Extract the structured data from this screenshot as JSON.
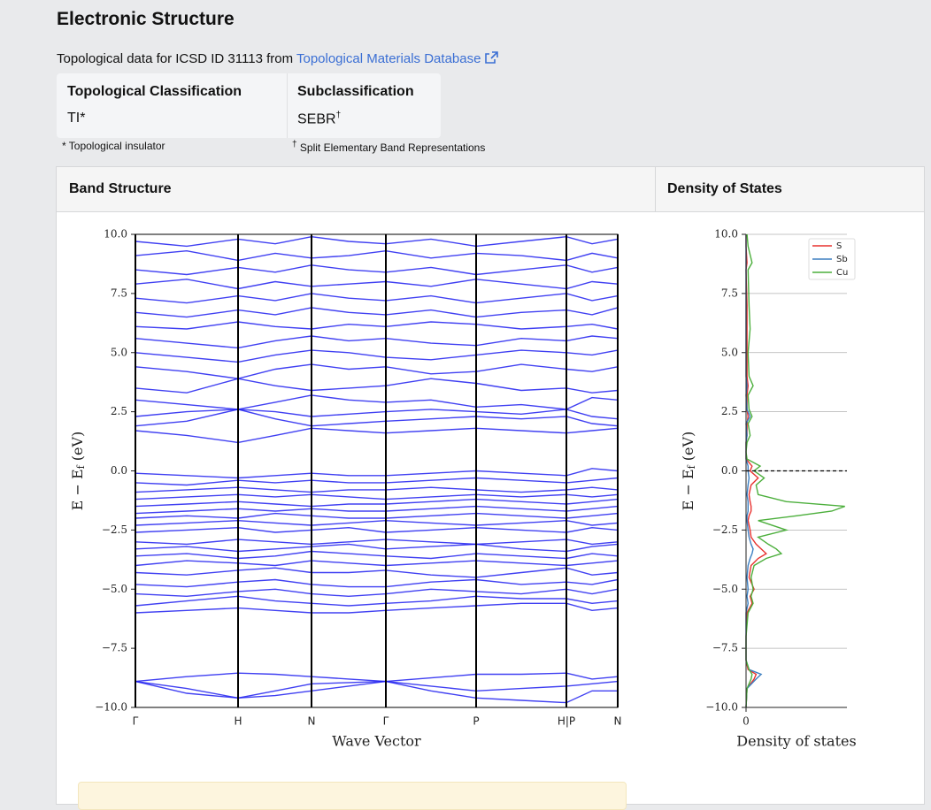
{
  "header": {
    "title": "Electronic Structure"
  },
  "source": {
    "text": "Topological data for ICSD ID 31113 from ",
    "link": "Topological Materials Database"
  },
  "classification": {
    "headers": [
      "Topological Classification",
      "Subclassification"
    ],
    "values": [
      {
        "text": "TI",
        "mark": "*"
      },
      {
        "text": "SEBR",
        "mark": "†"
      }
    ],
    "footnotes": [
      {
        "mark": "*",
        "text": " Topological insulator"
      },
      {
        "mark": "†",
        "text": " Split Elementary Band Representations"
      }
    ]
  },
  "panels": [
    "Band Structure",
    "Density of States"
  ],
  "chart_data": [
    {
      "type": "line",
      "xlabel": "Wave Vector",
      "ylabel": {
        "main": "E − E",
        "sub": "f",
        "unit": " (eV)"
      },
      "color": "#1f1ff0",
      "xlim": [
        0,
        5.45
      ],
      "ylim": [
        -10,
        10
      ],
      "xticks": [
        {
          "value": 0,
          "label": "Γ"
        },
        {
          "value": 1.16,
          "label": "H"
        },
        {
          "value": 1.99,
          "label": "N"
        },
        {
          "value": 2.83,
          "label": "Γ"
        },
        {
          "value": 3.85,
          "label": "P"
        },
        {
          "value": 4.87,
          "label": "H|P"
        },
        {
          "value": 5.45,
          "label": "N"
        }
      ],
      "yticks": [
        {
          "value": 10,
          "label": "10.0"
        },
        {
          "value": 7.5,
          "label": "7.5"
        },
        {
          "value": 5,
          "label": "5.0"
        },
        {
          "value": 2.5,
          "label": "2.5"
        },
        {
          "value": 0,
          "label": "0.0"
        },
        {
          "value": -2.5,
          "label": "−2.5"
        },
        {
          "value": -5,
          "label": "−5.0"
        },
        {
          "value": -7.5,
          "label": "−7.5"
        },
        {
          "value": -10,
          "label": "−10.0"
        }
      ],
      "x": [
        0,
        0.58,
        1.16,
        1.58,
        1.99,
        2.41,
        2.83,
        3.34,
        3.85,
        4.36,
        4.87,
        5.16,
        5.45
      ],
      "series": [
        {
          "values": [
            -8.9,
            -8.7,
            -8.55,
            -8.6,
            -8.7,
            -8.8,
            -8.9,
            -8.75,
            -8.6,
            -8.6,
            -8.55,
            -8.8,
            -8.7
          ]
        },
        {
          "values": [
            -8.9,
            -9.2,
            -9.6,
            -9.3,
            -9.0,
            -8.95,
            -8.9,
            -9.1,
            -9.3,
            -9.2,
            -9.1,
            -9.0,
            -8.9
          ]
        },
        {
          "values": [
            -8.9,
            -9.4,
            -9.6,
            -9.5,
            -9.3,
            -9.1,
            -8.9,
            -9.3,
            -9.6,
            -9.7,
            -9.8,
            -9.3,
            -9.3
          ]
        },
        {
          "values": [
            -6,
            -5.9,
            -5.8,
            -5.9,
            -6,
            -6,
            -5.9,
            -5.8,
            -5.7,
            -5.6,
            -5.6,
            -5.9,
            -5.8
          ]
        },
        {
          "values": [
            -5.7,
            -5.5,
            -5.3,
            -5.5,
            -5.6,
            -5.7,
            -5.6,
            -5.5,
            -5.3,
            -5.4,
            -5.4,
            -5.6,
            -5.5
          ]
        },
        {
          "values": [
            -5.2,
            -5.3,
            -5.1,
            -5.0,
            -5.2,
            -5.3,
            -5.2,
            -5.0,
            -5.1,
            -5.2,
            -5.0,
            -5.2,
            -5.0
          ]
        },
        {
          "values": [
            -4.8,
            -4.9,
            -4.7,
            -4.6,
            -4.8,
            -4.9,
            -4.9,
            -4.7,
            -4.6,
            -4.8,
            -4.7,
            -4.8,
            -4.6
          ]
        },
        {
          "values": [
            -4.3,
            -4.4,
            -4.2,
            -4.1,
            -4.3,
            -4.3,
            -4.2,
            -4.4,
            -4.5,
            -4.3,
            -4.1,
            -4.4,
            -4.3
          ]
        },
        {
          "values": [
            -4.0,
            -3.8,
            -3.9,
            -4.0,
            -3.8,
            -3.9,
            -4.0,
            -3.9,
            -3.8,
            -3.9,
            -4.0,
            -3.9,
            -3.8
          ]
        },
        {
          "values": [
            -3.6,
            -3.5,
            -3.7,
            -3.6,
            -3.4,
            -3.5,
            -3.6,
            -3.7,
            -3.5,
            -3.6,
            -3.7,
            -3.5,
            -3.6
          ]
        },
        {
          "values": [
            -3.3,
            -3.2,
            -3.4,
            -3.3,
            -3.2,
            -3.1,
            -3.3,
            -3.2,
            -3.1,
            -3.3,
            -3.4,
            -3.2,
            -3.1
          ]
        },
        {
          "values": [
            -3.0,
            -3.1,
            -2.9,
            -3.0,
            -3.1,
            -3.0,
            -2.9,
            -3.0,
            -3.1,
            -3.0,
            -2.9,
            -3.1,
            -3.0
          ]
        },
        {
          "values": [
            -2.6,
            -2.5,
            -2.4,
            -2.6,
            -2.5,
            -2.4,
            -2.6,
            -2.5,
            -2.4,
            -2.5,
            -2.6,
            -2.4,
            -2.5
          ]
        },
        {
          "values": [
            -2.3,
            -2.2,
            -2.1,
            -2.2,
            -2.3,
            -2.2,
            -2.1,
            -2.2,
            -2.3,
            -2.2,
            -2.1,
            -2.3,
            -2.2
          ]
        },
        {
          "values": [
            -2.0,
            -1.9,
            -2.0,
            -1.8,
            -1.9,
            -2.0,
            -2.0,
            -1.9,
            -1.8,
            -1.9,
            -2.0,
            -1.9,
            -1.8
          ]
        },
        {
          "values": [
            -1.8,
            -1.7,
            -1.6,
            -1.7,
            -1.6,
            -1.7,
            -1.7,
            -1.6,
            -1.5,
            -1.6,
            -1.7,
            -1.6,
            -1.5
          ]
        },
        {
          "values": [
            -1.5,
            -1.4,
            -1.3,
            -1.4,
            -1.5,
            -1.4,
            -1.4,
            -1.3,
            -1.2,
            -1.3,
            -1.4,
            -1.3,
            -1.2
          ]
        },
        {
          "values": [
            -1.2,
            -1.1,
            -1.0,
            -1.1,
            -1.0,
            -1.1,
            -1.2,
            -1.1,
            -1.0,
            -1.1,
            -1.0,
            -1.1,
            -1.0
          ]
        },
        {
          "values": [
            -0.9,
            -0.8,
            -0.7,
            -0.8,
            -0.9,
            -0.8,
            -0.8,
            -0.7,
            -0.8,
            -0.9,
            -0.8,
            -0.7,
            -0.8
          ]
        },
        {
          "values": [
            -0.5,
            -0.6,
            -0.4,
            -0.5,
            -0.4,
            -0.5,
            -0.5,
            -0.4,
            -0.3,
            -0.4,
            -0.5,
            -0.4,
            -0.3
          ]
        },
        {
          "values": [
            -0.1,
            -0.2,
            -0.3,
            -0.2,
            -0.1,
            -0.2,
            -0.2,
            -0.1,
            0.0,
            -0.1,
            -0.2,
            0.1,
            0.0
          ]
        },
        {
          "values": [
            1.7,
            1.5,
            1.2,
            1.5,
            1.8,
            1.7,
            1.6,
            1.7,
            1.8,
            1.7,
            1.6,
            1.7,
            1.8
          ]
        },
        {
          "values": [
            1.9,
            2.1,
            2.6,
            2.2,
            1.9,
            2.0,
            2.1,
            2.2,
            2.3,
            2.2,
            2.3,
            2.0,
            1.9
          ]
        },
        {
          "values": [
            2.3,
            2.5,
            2.6,
            2.5,
            2.3,
            2.4,
            2.5,
            2.6,
            2.5,
            2.4,
            2.6,
            2.3,
            2.2
          ]
        },
        {
          "values": [
            3.0,
            2.8,
            2.6,
            2.9,
            3.2,
            3.0,
            2.9,
            3.0,
            2.7,
            2.8,
            2.6,
            3.1,
            3.0
          ]
        },
        {
          "values": [
            3.5,
            3.3,
            3.9,
            3.6,
            3.4,
            3.5,
            3.6,
            3.9,
            3.7,
            3.4,
            3.5,
            3.3,
            3.4
          ]
        },
        {
          "values": [
            4.4,
            4.2,
            3.9,
            4.3,
            4.5,
            4.3,
            4.4,
            4.1,
            4.2,
            4.5,
            4.3,
            4.2,
            4.4
          ]
        },
        {
          "values": [
            5.0,
            4.8,
            4.6,
            4.9,
            5.1,
            5.0,
            4.8,
            4.7,
            4.9,
            5.1,
            5.0,
            4.9,
            5.1
          ]
        },
        {
          "values": [
            5.6,
            5.4,
            5.2,
            5.5,
            5.7,
            5.5,
            5.6,
            5.4,
            5.3,
            5.6,
            5.5,
            5.7,
            5.6
          ]
        },
        {
          "values": [
            6.1,
            6.0,
            6.3,
            6.1,
            6.0,
            6.2,
            6.1,
            6.3,
            6.2,
            6.0,
            6.1,
            6.2,
            6.0
          ]
        },
        {
          "values": [
            6.7,
            6.5,
            6.8,
            6.6,
            6.9,
            6.7,
            6.6,
            6.8,
            6.5,
            6.7,
            6.8,
            6.6,
            6.9
          ]
        },
        {
          "values": [
            7.3,
            7.1,
            7.4,
            7.2,
            7.5,
            7.3,
            7.2,
            7.4,
            7.1,
            7.3,
            7.5,
            7.2,
            7.4
          ]
        },
        {
          "values": [
            7.9,
            8.1,
            7.7,
            8.0,
            7.8,
            7.9,
            8.0,
            7.8,
            8.1,
            7.9,
            7.7,
            8.0,
            7.9
          ]
        },
        {
          "values": [
            8.5,
            8.3,
            8.6,
            8.4,
            8.7,
            8.5,
            8.4,
            8.6,
            8.3,
            8.5,
            8.7,
            8.4,
            8.6
          ]
        },
        {
          "values": [
            9.1,
            9.3,
            8.9,
            9.2,
            9.0,
            9.1,
            9.3,
            9.0,
            9.2,
            9.1,
            8.9,
            9.2,
            9.0
          ]
        },
        {
          "values": [
            9.7,
            9.5,
            9.8,
            9.6,
            9.9,
            9.7,
            9.6,
            9.8,
            9.5,
            9.7,
            9.9,
            9.6,
            9.8
          ]
        }
      ]
    },
    {
      "type": "dos",
      "xlabel": "Density of states",
      "ylabel": {
        "main": "E − E",
        "sub": "f",
        "unit": " (eV)"
      },
      "xlim": [
        0,
        1
      ],
      "ylim": [
        -10,
        10
      ],
      "xticks": [
        0
      ],
      "yticks": [
        {
          "value": 10,
          "label": "10.0"
        },
        {
          "value": 7.5,
          "label": "7.5"
        },
        {
          "value": 5,
          "label": "5.0"
        },
        {
          "value": 2.5,
          "label": "2.5"
        },
        {
          "value": 0,
          "label": "0.0"
        },
        {
          "value": -2.5,
          "label": "−2.5"
        },
        {
          "value": -5,
          "label": "−5.0"
        },
        {
          "value": -7.5,
          "label": "−7.5"
        },
        {
          "value": -10,
          "label": "−10.0"
        }
      ],
      "grid": true,
      "legend": "upper right",
      "energy": [
        10,
        9.5,
        8.8,
        8.5,
        7,
        6,
        5,
        4,
        3.6,
        3.2,
        2.6,
        2.3,
        2,
        1.5,
        1.2,
        0.8,
        0.5,
        0.2,
        0,
        -0.3,
        -0.6,
        -1,
        -1.3,
        -1.5,
        -1.7,
        -1.9,
        -2.1,
        -2.5,
        -2.8,
        -3.1,
        -3.3,
        -3.5,
        -3.7,
        -4,
        -4.5,
        -5,
        -5.3,
        -5.6,
        -6,
        -7,
        -8,
        -8.4,
        -8.6,
        -8.8,
        -9.2,
        -10
      ],
      "series": [
        {
          "name": "S",
          "color": "#e8322f",
          "values": [
            0,
            0,
            0.01,
            0,
            0.01,
            0.01,
            0.01,
            0.01,
            0.02,
            0.01,
            0.01,
            0.02,
            0.01,
            0.01,
            0,
            0,
            0,
            0.06,
            0.04,
            0.12,
            0.05,
            0.03,
            0.04,
            0.05,
            0.05,
            0.03,
            0.02,
            0.04,
            0.05,
            0.1,
            0.15,
            0.2,
            0.12,
            0.05,
            0.03,
            0.08,
            0.04,
            0.06,
            0.01,
            0,
            0,
            0.02,
            0.1,
            0.08,
            0.01,
            0
          ]
        },
        {
          "name": "Sb",
          "color": "#3d7fc1",
          "values": [
            0,
            0,
            0,
            0,
            0,
            0,
            0,
            0,
            0.01,
            0,
            0.01,
            0.04,
            0,
            0.01,
            0,
            0,
            0,
            0.02,
            0.02,
            0.03,
            0.02,
            0.01,
            0.02,
            0.02,
            0.02,
            0.01,
            0.01,
            0.02,
            0.03,
            0.05,
            0.07,
            0.06,
            0.04,
            0.02,
            0.01,
            0.02,
            0.01,
            0.02,
            0,
            0,
            0,
            0.03,
            0.15,
            0.1,
            0.01,
            0
          ]
        },
        {
          "name": "Cu",
          "color": "#4caf3c",
          "values": [
            0.01,
            0.02,
            0.06,
            0.02,
            0.03,
            0.04,
            0.02,
            0.03,
            0.07,
            0.02,
            0.03,
            0.06,
            0.02,
            0.04,
            0.01,
            0,
            0.01,
            0.14,
            0.08,
            0.18,
            0.1,
            0.12,
            0.4,
            0.98,
            0.85,
            0.5,
            0.12,
            0.4,
            0.12,
            0.22,
            0.3,
            0.35,
            0.2,
            0.08,
            0.05,
            0.07,
            0.05,
            0.07,
            0.02,
            0,
            0,
            0.03,
            0.06,
            0.05,
            0.01,
            0
          ]
        }
      ]
    }
  ]
}
